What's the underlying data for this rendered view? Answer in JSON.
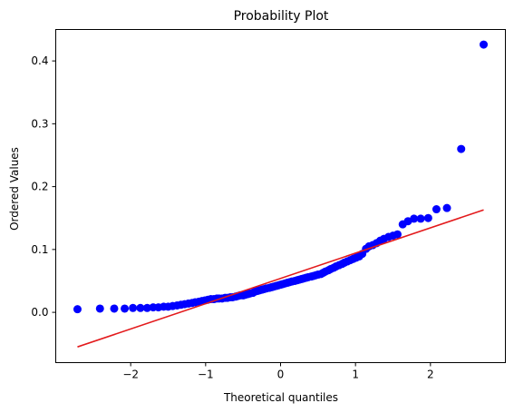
{
  "chart_data": {
    "type": "scatter",
    "title": "Probability Plot",
    "xlabel": "Theoretical quantiles",
    "ylabel": "Ordered Values",
    "xlim": [
      -3.0,
      3.0
    ],
    "ylim": [
      -0.08,
      0.45
    ],
    "xticks": [
      {
        "value": -2,
        "label": "−2"
      },
      {
        "value": -1,
        "label": "−1"
      },
      {
        "value": 0,
        "label": "0"
      },
      {
        "value": 1,
        "label": "1"
      },
      {
        "value": 2,
        "label": "2"
      }
    ],
    "yticks": [
      {
        "value": 0.0,
        "label": "0.0"
      },
      {
        "value": 0.1,
        "label": "0.1"
      },
      {
        "value": 0.2,
        "label": "0.2"
      },
      {
        "value": 0.3,
        "label": "0.3"
      },
      {
        "value": 0.4,
        "label": "0.4"
      }
    ],
    "grid": false,
    "legend": "none",
    "marker_color": "#0000ff",
    "line_color": "#e31a1c",
    "points": [
      [
        -2.71,
        0.005
      ],
      [
        -2.41,
        0.006
      ],
      [
        -2.22,
        0.006
      ],
      [
        -2.08,
        0.006
      ],
      [
        -1.97,
        0.007
      ],
      [
        -1.87,
        0.007
      ],
      [
        -1.78,
        0.007
      ],
      [
        -1.7,
        0.008
      ],
      [
        -1.63,
        0.008
      ],
      [
        -1.56,
        0.009
      ],
      [
        -1.5,
        0.009
      ],
      [
        -1.44,
        0.01
      ],
      [
        -1.38,
        0.011
      ],
      [
        -1.33,
        0.012
      ],
      [
        -1.28,
        0.013
      ],
      [
        -1.23,
        0.014
      ],
      [
        -1.18,
        0.015
      ],
      [
        -1.14,
        0.016
      ],
      [
        -1.09,
        0.017
      ],
      [
        -1.05,
        0.018
      ],
      [
        -1.01,
        0.019
      ],
      [
        -0.97,
        0.02
      ],
      [
        -0.93,
        0.021
      ],
      [
        -0.89,
        0.021
      ],
      [
        -0.85,
        0.022
      ],
      [
        -0.82,
        0.022
      ],
      [
        -0.78,
        0.022
      ],
      [
        -0.74,
        0.023
      ],
      [
        -0.71,
        0.023
      ],
      [
        -0.67,
        0.024
      ],
      [
        -0.64,
        0.024
      ],
      [
        -0.6,
        0.025
      ],
      [
        -0.57,
        0.026
      ],
      [
        -0.54,
        0.027
      ],
      [
        -0.5,
        0.027
      ],
      [
        -0.47,
        0.028
      ],
      [
        -0.44,
        0.029
      ],
      [
        -0.41,
        0.03
      ],
      [
        -0.37,
        0.031
      ],
      [
        -0.34,
        0.033
      ],
      [
        -0.31,
        0.034
      ],
      [
        -0.28,
        0.035
      ],
      [
        -0.25,
        0.036
      ],
      [
        -0.22,
        0.037
      ],
      [
        -0.19,
        0.038
      ],
      [
        -0.15,
        0.039
      ],
      [
        -0.12,
        0.04
      ],
      [
        -0.09,
        0.041
      ],
      [
        -0.06,
        0.042
      ],
      [
        -0.03,
        0.043
      ],
      [
        0.0,
        0.044
      ],
      [
        0.03,
        0.045
      ],
      [
        0.06,
        0.046
      ],
      [
        0.09,
        0.047
      ],
      [
        0.12,
        0.048
      ],
      [
        0.15,
        0.049
      ],
      [
        0.19,
        0.05
      ],
      [
        0.22,
        0.051
      ],
      [
        0.25,
        0.052
      ],
      [
        0.28,
        0.053
      ],
      [
        0.31,
        0.054
      ],
      [
        0.34,
        0.055
      ],
      [
        0.37,
        0.056
      ],
      [
        0.41,
        0.057
      ],
      [
        0.44,
        0.058
      ],
      [
        0.47,
        0.059
      ],
      [
        0.5,
        0.06
      ],
      [
        0.54,
        0.061
      ],
      [
        0.57,
        0.063
      ],
      [
        0.6,
        0.065
      ],
      [
        0.64,
        0.067
      ],
      [
        0.67,
        0.069
      ],
      [
        0.71,
        0.071
      ],
      [
        0.74,
        0.073
      ],
      [
        0.78,
        0.075
      ],
      [
        0.82,
        0.077
      ],
      [
        0.85,
        0.079
      ],
      [
        0.89,
        0.081
      ],
      [
        0.93,
        0.083
      ],
      [
        0.97,
        0.085
      ],
      [
        1.01,
        0.087
      ],
      [
        1.05,
        0.089
      ],
      [
        1.09,
        0.093
      ],
      [
        1.14,
        0.101
      ],
      [
        1.18,
        0.105
      ],
      [
        1.23,
        0.107
      ],
      [
        1.28,
        0.11
      ],
      [
        1.33,
        0.114
      ],
      [
        1.38,
        0.117
      ],
      [
        1.44,
        0.12
      ],
      [
        1.5,
        0.122
      ],
      [
        1.56,
        0.124
      ],
      [
        1.63,
        0.14
      ],
      [
        1.7,
        0.145
      ],
      [
        1.78,
        0.149
      ],
      [
        1.87,
        0.149
      ],
      [
        1.97,
        0.15
      ],
      [
        2.08,
        0.164
      ],
      [
        2.22,
        0.166
      ],
      [
        2.41,
        0.26
      ],
      [
        2.71,
        0.426
      ]
    ],
    "fit_line": {
      "x": [
        -2.71,
        2.71
      ],
      "y": [
        -0.055,
        0.163
      ]
    }
  }
}
